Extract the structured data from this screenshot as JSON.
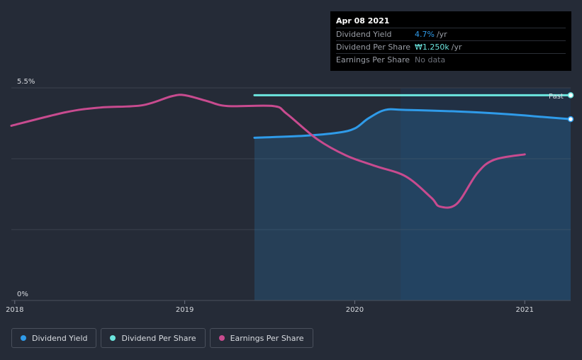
{
  "chart_data": {
    "type": "line",
    "x_range": [
      2017.98,
      2021.27
    ],
    "y_range": [
      0,
      5.5
    ],
    "y_ticks": [
      {
        "value": 5.5,
        "label": "5.5%"
      },
      {
        "value": 0,
        "label": "0%"
      }
    ],
    "x_ticks": [
      {
        "value": 2018,
        "label": "2018"
      },
      {
        "value": 2019,
        "label": "2019"
      },
      {
        "value": 2020,
        "label": "2020"
      },
      {
        "value": 2021,
        "label": "2021"
      }
    ],
    "past_start": 2020.27,
    "past_label": "Past",
    "series": [
      {
        "name": "Dividend Yield",
        "color": "#2f9be9",
        "area": true,
        "points": [
          [
            2019.41,
            4.21
          ],
          [
            2019.7,
            4.26
          ],
          [
            2019.9,
            4.34
          ],
          [
            2020.0,
            4.45
          ],
          [
            2020.08,
            4.71
          ],
          [
            2020.18,
            4.93
          ],
          [
            2020.3,
            4.93
          ],
          [
            2020.6,
            4.89
          ],
          [
            2020.9,
            4.82
          ],
          [
            2021.1,
            4.75
          ],
          [
            2021.27,
            4.69
          ]
        ]
      },
      {
        "name": "Dividend Per Share",
        "color": "#6ce6df",
        "area": false,
        "points": [
          [
            2019.41,
            5.31
          ],
          [
            2021.27,
            5.31
          ]
        ]
      },
      {
        "name": "Earnings Per Share",
        "color": "#c84b8f",
        "area": false,
        "points": [
          [
            2017.98,
            4.52
          ],
          [
            2018.3,
            4.87
          ],
          [
            2018.5,
            4.99
          ],
          [
            2018.75,
            5.05
          ],
          [
            2018.92,
            5.28
          ],
          [
            2019.0,
            5.31
          ],
          [
            2019.13,
            5.16
          ],
          [
            2019.25,
            5.03
          ],
          [
            2019.52,
            5.03
          ],
          [
            2019.6,
            4.83
          ],
          [
            2019.78,
            4.17
          ],
          [
            2019.95,
            3.75
          ],
          [
            2020.12,
            3.48
          ],
          [
            2020.3,
            3.21
          ],
          [
            2020.45,
            2.66
          ],
          [
            2020.5,
            2.43
          ],
          [
            2020.6,
            2.5
          ],
          [
            2020.72,
            3.29
          ],
          [
            2020.82,
            3.64
          ],
          [
            2021.0,
            3.78
          ]
        ]
      }
    ]
  },
  "tooltip": {
    "date": "Apr 08 2021",
    "rows": [
      {
        "label": "Dividend Yield",
        "value": "4.7%",
        "unit": "/yr"
      },
      {
        "label": "Dividend Per Share",
        "value": "₩1.250k",
        "unit": "/yr"
      },
      {
        "label": "Earnings Per Share",
        "value": "No data",
        "unit": ""
      }
    ]
  },
  "legend": [
    {
      "label": "Dividend Yield",
      "color": "#2f9be9"
    },
    {
      "label": "Dividend Per Share",
      "color": "#6ce6df"
    },
    {
      "label": "Earnings Per Share",
      "color": "#c84b8f"
    }
  ]
}
